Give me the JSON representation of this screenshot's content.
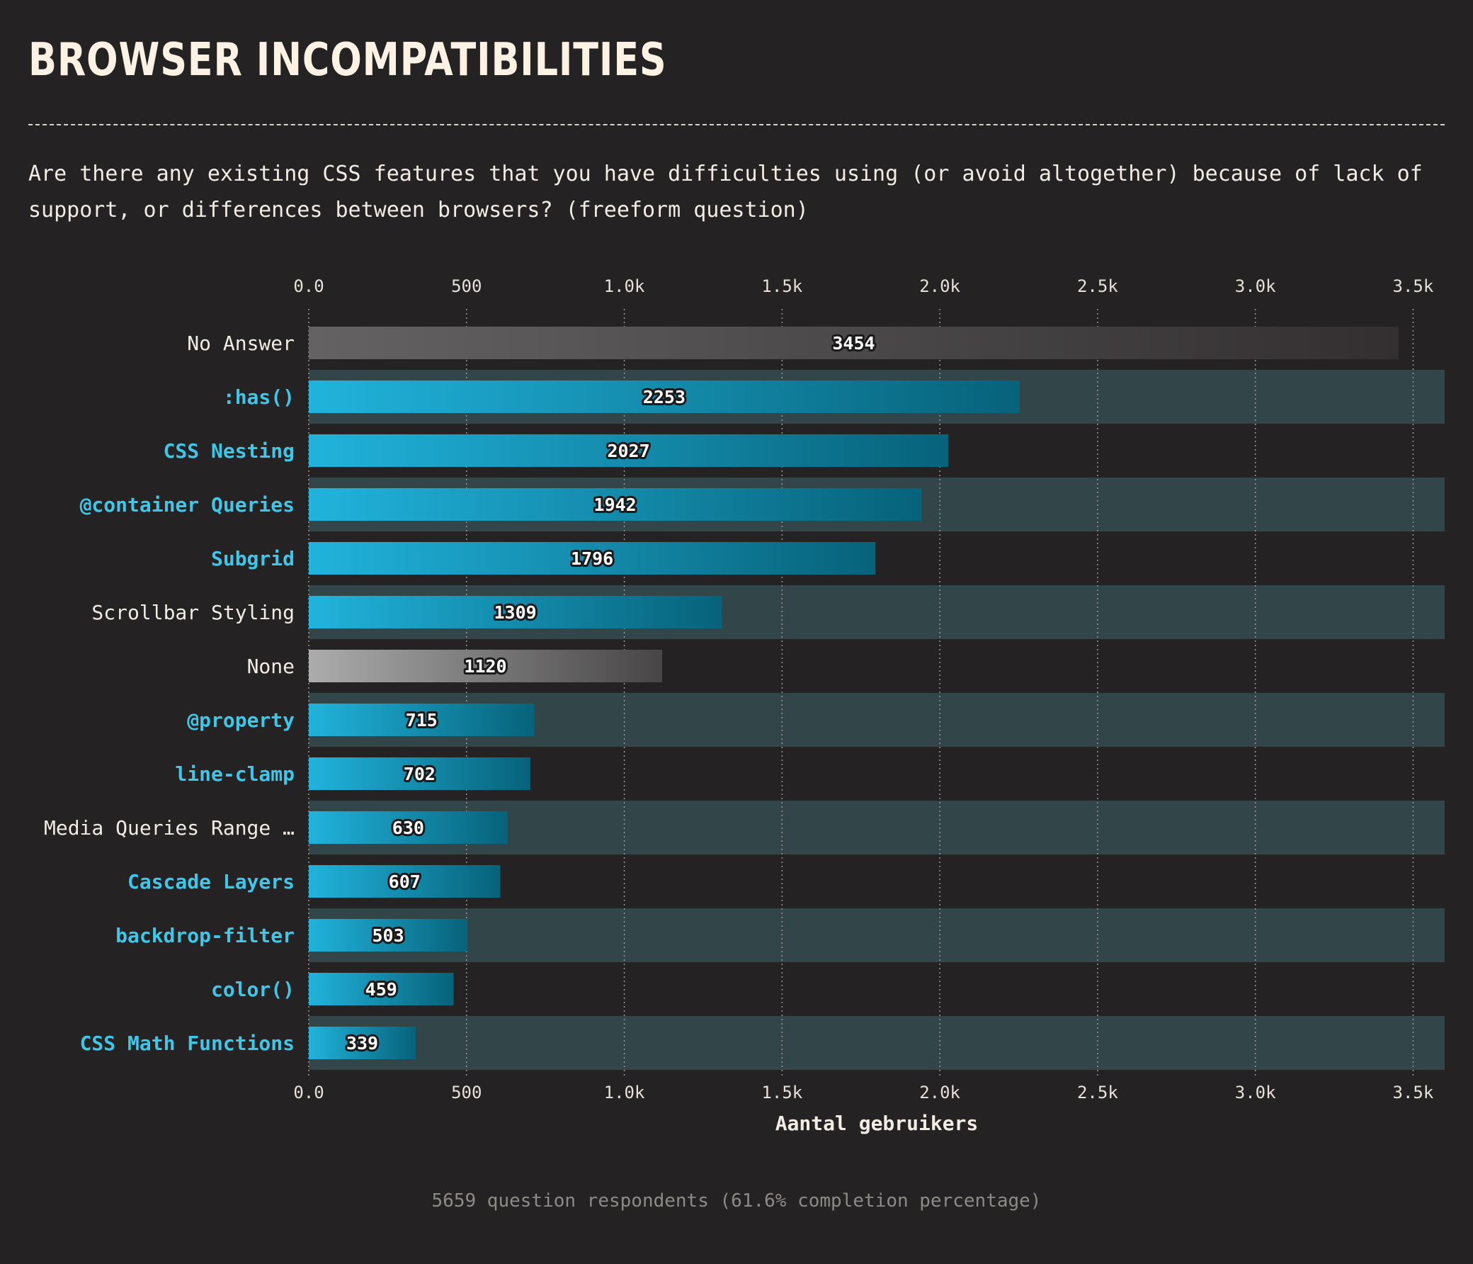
{
  "title": "BROWSER INCOMPATIBILITIES",
  "question": "Are there any existing CSS features that you have difficulties using (or avoid altogether) because of lack of support, or differences between browsers? (freeform question)",
  "footer": "5659 question respondents (61.6% completion percentage)",
  "colors": {
    "background": "#252224",
    "feature_label": "#3fc7ea",
    "plain_label": "#f3ece4",
    "bar_blue_start": "#21b3dc",
    "bar_blue_end": "#07627a",
    "bar_gray_dark_start": "#646262",
    "bar_gray_dark_end": "#332f31",
    "bar_gray_light_start": "#acacac",
    "bar_gray_light_end": "#474546",
    "band": "#324549"
  },
  "chart_data": {
    "type": "bar",
    "orientation": "horizontal",
    "xlabel": "Aantal gebruikers",
    "xlim": [
      0,
      3600
    ],
    "xticks": [
      0,
      500,
      1000,
      1500,
      2000,
      2500,
      3000,
      3500
    ],
    "xtick_labels": [
      "0.0",
      "500",
      "1.0k",
      "1.5k",
      "2.0k",
      "2.5k",
      "3.0k",
      "3.5k"
    ],
    "grid": true,
    "categories": [
      {
        "label": "No Answer",
        "value": 3454,
        "kind": "dark-gray",
        "feature": false
      },
      {
        "label": ":has()",
        "value": 2253,
        "kind": "blue",
        "feature": true
      },
      {
        "label": "CSS Nesting",
        "value": 2027,
        "kind": "blue",
        "feature": true
      },
      {
        "label": "@container Queries",
        "value": 1942,
        "kind": "blue",
        "feature": true
      },
      {
        "label": "Subgrid",
        "value": 1796,
        "kind": "blue",
        "feature": true
      },
      {
        "label": "Scrollbar Styling",
        "value": 1309,
        "kind": "blue",
        "feature": false
      },
      {
        "label": "None",
        "value": 1120,
        "kind": "light-gray",
        "feature": false
      },
      {
        "label": "@property",
        "value": 715,
        "kind": "blue",
        "feature": true
      },
      {
        "label": "line-clamp",
        "value": 702,
        "kind": "blue",
        "feature": true
      },
      {
        "label": "Media Queries Range …",
        "value": 630,
        "kind": "blue",
        "feature": false
      },
      {
        "label": "Cascade Layers",
        "value": 607,
        "kind": "blue",
        "feature": true
      },
      {
        "label": "backdrop-filter",
        "value": 503,
        "kind": "blue",
        "feature": true
      },
      {
        "label": "color()",
        "value": 459,
        "kind": "blue",
        "feature": true
      },
      {
        "label": "CSS Math Functions",
        "value": 339,
        "kind": "blue",
        "feature": true
      }
    ]
  }
}
